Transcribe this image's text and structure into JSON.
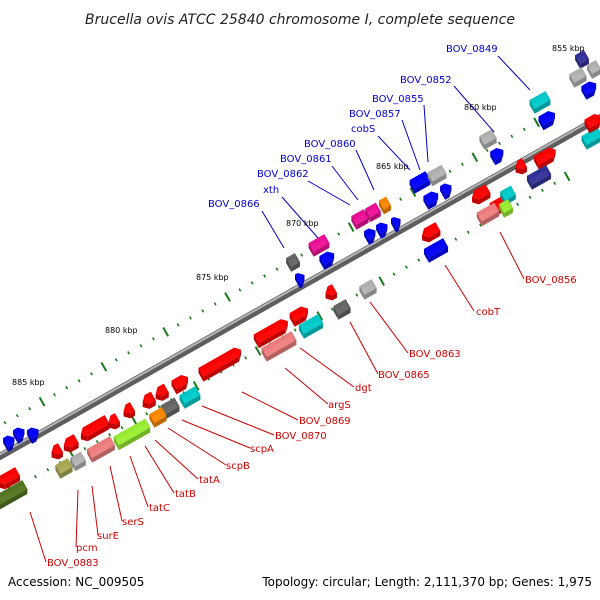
{
  "title": "Brucella ovis ATCC 25840 chromosome I, complete sequence",
  "footer": {
    "accession": "Accession: NC_009505",
    "stats": "Topology: circular; Length: 2,111,370 bp; Genes: 1,975"
  },
  "colors": {
    "backbone": "#8a8a8a",
    "ticks": "#1a7a1a",
    "label_top": "#0000cc",
    "label_bottom": "#cc0000",
    "red": "#ff0000",
    "pink": "#f08080",
    "cyan": "#00cccc",
    "gray": "#b4b4b4",
    "darkgray": "#666666",
    "blue": "#0000ff",
    "navy": "#333399",
    "magenta": "#ee1199",
    "orange": "#ff8800",
    "lime": "#99ee33",
    "olive": "#aaaa55",
    "darkolive": "#557722"
  },
  "tick_labels": [
    "855 kbp",
    "860 kbp",
    "865 kbp",
    "870 kbp",
    "875 kbp",
    "880 kbp",
    "885 kbp"
  ],
  "gene_labels_top": [
    "BOV_0849",
    "BOV_0852",
    "BOV_0855",
    "BOV_0857",
    "cobS",
    "BOV_0860",
    "BOV_0861",
    "BOV_0862",
    "xth",
    "BOV_0866"
  ],
  "gene_labels_bottom": [
    "BOV_0856",
    "cobT",
    "BOV_0863",
    "BOV_0865",
    "dgt",
    "argS",
    "BOV_0869",
    "BOV_0870",
    "scpA",
    "scpB",
    "tatA",
    "tatB",
    "tatC",
    "serS",
    "surE",
    "pcm",
    "BOV_0883"
  ]
}
